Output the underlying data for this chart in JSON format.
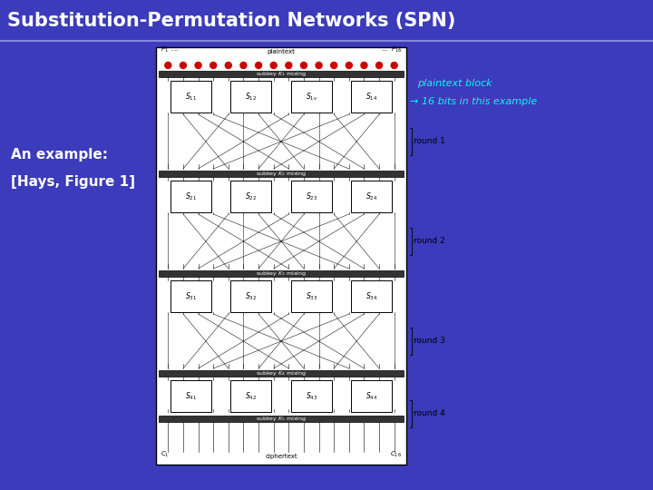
{
  "title": "Substitution-Permutation Networks (SPN)",
  "title_color": "#FFFFFF",
  "title_bg_color": "#3B3BBB",
  "bg_color": "#3B3BBB",
  "left_text_line1": "An example:",
  "left_text_line2": "[Hays, Figure 1]",
  "left_text_color": "#FFFFFF",
  "annotation_line1": "plaintext block",
  "annotation_line2": "→ 16 bits in this example",
  "annotation_color": "#00FFEE",
  "round_labels": [
    "round 1",
    "round 2",
    "round 3",
    "round 4"
  ],
  "sbox_labels_r1": [
    "S_{11}",
    "S_{12}",
    "S_{1v}",
    "S_{14}"
  ],
  "sbox_labels_r2": [
    "S_{21}",
    "S_{22}",
    "S_{23}",
    "S_{24}"
  ],
  "sbox_labels_r3": [
    "S_{31}",
    "S_{32}",
    "S_{33}",
    "S_{34}"
  ],
  "sbox_labels_r4": [
    "S_{41}",
    "S_{42}",
    "S_{43}",
    "S_{44}"
  ],
  "key_mixing_labels": [
    "subkey $K_1$ mixing",
    "subkey $K_2$ mixing",
    "subkey $K_3$ mixing",
    "subkey $K_4$ mixing",
    "subkey $K_5$ mixing"
  ]
}
